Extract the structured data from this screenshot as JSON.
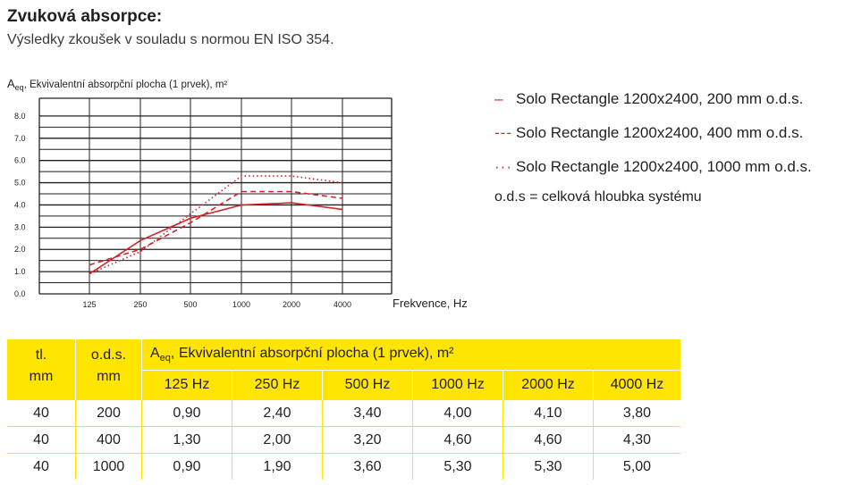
{
  "header": {
    "title": "Zvuková absorpce:",
    "subtitle": "Výsledky zkoušek v souladu s normou EN ISO 354."
  },
  "chart_data": {
    "type": "line",
    "ylabel_symbol": "A",
    "ylabel_sub": "eq",
    "ylabel_text": ", Ekvivalentní absorpční plocha (1 prvek), m²",
    "xlabel": "Frekvence, Hz",
    "categories": [
      "125",
      "250",
      "500",
      "1000",
      "2000",
      "4000"
    ],
    "yticks": [
      "0.0",
      "1.0",
      "2.0",
      "3.0",
      "4.0",
      "5.0",
      "6.0",
      "7.0",
      "8.0"
    ],
    "ylim": [
      0,
      8
    ],
    "grid": true,
    "series": [
      {
        "name": "Solo Rectangle 1200x2400, 200 mm o.d.s.",
        "style": "solid",
        "legend_marker": "–",
        "values": [
          0.9,
          2.4,
          3.4,
          4.0,
          4.1,
          3.8
        ]
      },
      {
        "name": "Solo Rectangle 1200x2400, 400 mm o.d.s.",
        "style": "dashed",
        "legend_marker": "---",
        "values": [
          1.3,
          2.0,
          3.2,
          4.6,
          4.6,
          4.3
        ]
      },
      {
        "name": "Solo Rectangle 1200x2400, 1000 mm o.d.s.",
        "style": "dotted",
        "legend_marker": "···",
        "values": [
          0.9,
          1.9,
          3.6,
          5.3,
          5.3,
          5.0
        ]
      }
    ],
    "line_color": "#d2232a"
  },
  "legend_note": "o.d.s = celková hloubka systému",
  "table": {
    "col_tl": "tl.",
    "col_tl_unit": "mm",
    "col_ods": "o.d.s.",
    "col_ods_unit": "mm",
    "aeq_symbol": "A",
    "aeq_sub": "eq",
    "aeq_text": ", Ekvivalentní absorpční plocha (1 prvek), m²",
    "freq_headers": [
      "125 Hz",
      "250 Hz",
      "500 Hz",
      "1000 Hz",
      "2000 Hz",
      "4000 Hz"
    ],
    "rows": [
      [
        "40",
        "200",
        "0,90",
        "2,40",
        "3,40",
        "4,00",
        "4,10",
        "3,80"
      ],
      [
        "40",
        "400",
        "1,30",
        "2,00",
        "3,20",
        "4,60",
        "4,60",
        "4,30"
      ],
      [
        "40",
        "1000",
        "0,90",
        "1,90",
        "3,60",
        "5,30",
        "5,30",
        "5,00"
      ]
    ],
    "header_color": "#ffe500"
  }
}
